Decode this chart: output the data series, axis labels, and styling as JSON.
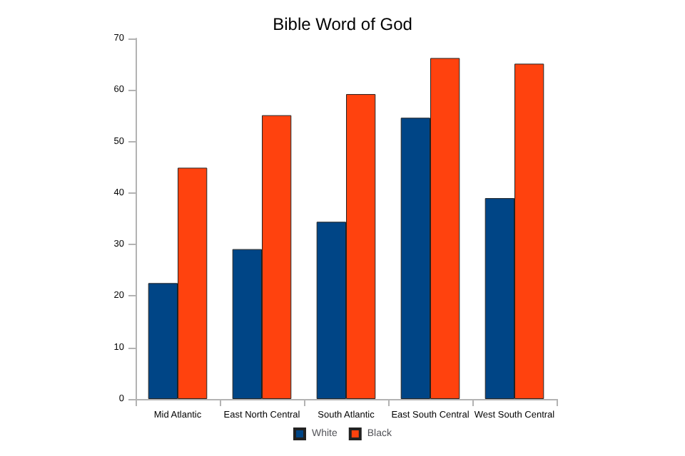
{
  "chart_data": {
    "type": "bar",
    "title": "Bible Word of God",
    "categories": [
      "Mid Atlantic",
      "East North Central",
      "South Atlantic",
      "East South Central",
      "West South Central"
    ],
    "series": [
      {
        "name": "White",
        "color": "#004586",
        "values": [
          22.5,
          29.1,
          34.4,
          54.6,
          39.0
        ]
      },
      {
        "name": "Black",
        "color": "#ff420e",
        "values": [
          44.9,
          55.1,
          59.2,
          66.2,
          65.1
        ]
      }
    ],
    "ylim": [
      0,
      70
    ],
    "yticks": [
      0,
      10,
      20,
      30,
      40,
      50,
      60,
      70
    ],
    "grid": false,
    "legend": "bottom"
  }
}
